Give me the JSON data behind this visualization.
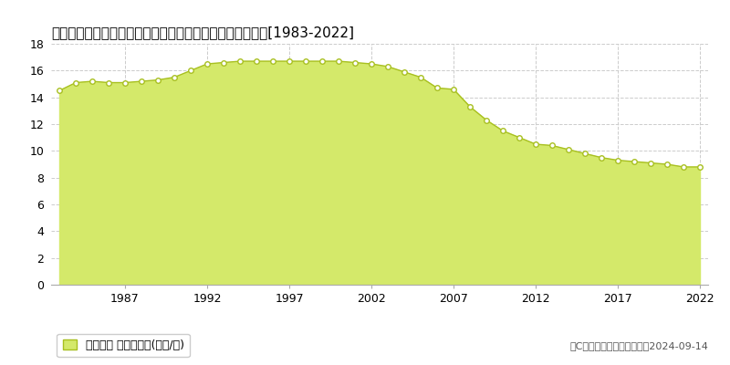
{
  "title": "福岡県大牧田市中町２丁目１０番４　地価公示　地価推移[1983-2022]",
  "years": [
    1983,
    1984,
    1985,
    1986,
    1987,
    1988,
    1989,
    1990,
    1991,
    1992,
    1993,
    1994,
    1995,
    1996,
    1997,
    1998,
    1999,
    2000,
    2001,
    2002,
    2003,
    2004,
    2005,
    2006,
    2007,
    2008,
    2009,
    2010,
    2011,
    2012,
    2013,
    2014,
    2015,
    2016,
    2017,
    2018,
    2019,
    2020,
    2021,
    2022
  ],
  "values": [
    14.5,
    15.1,
    15.2,
    15.1,
    15.1,
    15.2,
    15.3,
    15.5,
    16.0,
    16.5,
    16.6,
    16.7,
    16.7,
    16.7,
    16.7,
    16.7,
    16.7,
    16.7,
    16.6,
    16.5,
    16.3,
    15.9,
    15.5,
    14.7,
    14.6,
    13.3,
    12.3,
    11.5,
    11.0,
    10.5,
    10.4,
    10.1,
    9.8,
    9.5,
    9.3,
    9.2,
    9.1,
    9.0,
    8.8,
    8.8
  ],
  "fill_color": "#d4e96a",
  "line_color": "#a8c020",
  "marker_color": "#ffffff",
  "marker_edge_color": "#a8c020",
  "background_color": "#ffffff",
  "grid_color": "#cccccc",
  "legend_label": "地価公示 平均坪単価(万円/坪)",
  "copyright_text": "（C）土地価格ドットコム　2024-09-14",
  "ylim": [
    0,
    18
  ],
  "yticks": [
    0,
    2,
    4,
    6,
    8,
    10,
    12,
    14,
    16,
    18
  ],
  "xticks": [
    1987,
    1992,
    1997,
    2002,
    2007,
    2012,
    2017,
    2022
  ],
  "title_fontsize": 11,
  "axis_fontsize": 9,
  "legend_fontsize": 9,
  "copyright_fontsize": 8
}
